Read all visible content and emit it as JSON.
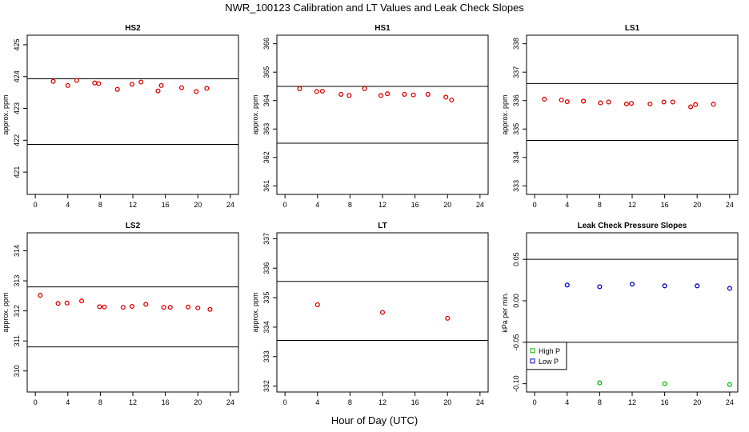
{
  "title": "NWR_100123  Calibration and LT Values and Leak Check Slopes",
  "xlabel": "Hour of Day (UTC)",
  "chart_data": [
    {
      "type": "scatter",
      "title": "HS2",
      "ylabel": "approx. ppm",
      "xlim": [
        -1,
        25
      ],
      "ylim": [
        420.3,
        425.3
      ],
      "xticks": [
        0,
        4,
        8,
        12,
        16,
        20,
        24
      ],
      "yticks": [
        421,
        422,
        423,
        424,
        425
      ],
      "hlines": [
        421.87,
        423.93
      ],
      "color": "#dd0000",
      "series": [
        {
          "x": [
            2.2,
            4,
            5.1,
            7.3,
            7.8,
            10.1,
            11.9,
            13,
            15.1,
            15.5,
            18,
            19.8,
            21.1
          ],
          "y": [
            423.85,
            423.72,
            423.88,
            423.8,
            423.78,
            423.6,
            423.76,
            423.83,
            423.55,
            423.72,
            423.65,
            423.53,
            423.63
          ]
        }
      ]
    },
    {
      "type": "scatter",
      "title": "HS1",
      "ylabel": "approx. ppm",
      "xlim": [
        -1,
        25
      ],
      "ylim": [
        360.7,
        366.3
      ],
      "xticks": [
        0,
        4,
        8,
        12,
        16,
        20,
        24
      ],
      "yticks": [
        361,
        362,
        363,
        364,
        365,
        366
      ],
      "hlines": [
        362.5,
        364.5
      ],
      "color": "#dd0000",
      "series": [
        {
          "x": [
            1.8,
            3.9,
            4.6,
            6.9,
            7.9,
            9.8,
            11.8,
            12.6,
            14.7,
            15.8,
            17.6,
            19.8,
            20.5
          ],
          "y": [
            364.42,
            364.32,
            364.33,
            364.22,
            364.18,
            364.42,
            364.18,
            364.24,
            364.22,
            364.2,
            364.22,
            364.12,
            364.02
          ]
        }
      ]
    },
    {
      "type": "scatter",
      "title": "LS1",
      "ylabel": "approx. ppm",
      "xlim": [
        -1,
        25
      ],
      "ylim": [
        332.7,
        338.3
      ],
      "xticks": [
        0,
        4,
        8,
        12,
        16,
        20,
        24
      ],
      "yticks": [
        333,
        334,
        335,
        336,
        337,
        338
      ],
      "hlines": [
        334.6,
        336.6
      ],
      "color": "#dd0000",
      "series": [
        {
          "x": [
            1.2,
            3.3,
            4,
            6,
            8.1,
            9.1,
            11.3,
            11.9,
            14.2,
            15.9,
            17,
            19.2,
            19.8,
            22
          ],
          "y": [
            336.05,
            336.02,
            335.96,
            335.98,
            335.92,
            335.95,
            335.88,
            335.9,
            335.88,
            335.95,
            335.95,
            335.78,
            335.86,
            335.87
          ]
        }
      ]
    },
    {
      "type": "scatter",
      "title": "LS2",
      "ylabel": "approx. ppm",
      "xlim": [
        -1,
        25
      ],
      "ylim": [
        309.3,
        314.6
      ],
      "xticks": [
        0,
        4,
        8,
        12,
        16,
        20,
        24
      ],
      "yticks": [
        310,
        311,
        312,
        313,
        314
      ],
      "hlines": [
        310.8,
        312.8
      ],
      "color": "#dd0000",
      "series": [
        {
          "x": [
            0.6,
            2.8,
            3.9,
            5.7,
            7.9,
            8.5,
            10.8,
            11.9,
            13.6,
            15.8,
            16.6,
            18.8,
            20,
            21.5
          ],
          "y": [
            312.52,
            312.25,
            312.26,
            312.33,
            312.14,
            312.13,
            312.12,
            312.15,
            312.22,
            312.12,
            312.12,
            312.13,
            312.1,
            312.05
          ]
        }
      ]
    },
    {
      "type": "scatter",
      "title": "LT",
      "ylabel": "approx. ppm",
      "xlim": [
        -1,
        25
      ],
      "ylim": [
        331.8,
        337.2
      ],
      "xticks": [
        0,
        4,
        8,
        12,
        16,
        20,
        24
      ],
      "yticks": [
        332,
        333,
        334,
        335,
        336,
        337
      ],
      "hlines": [
        333.55,
        335.55
      ],
      "color": "#dd0000",
      "series": [
        {
          "x": [
            4,
            12,
            20
          ],
          "y": [
            334.76,
            334.5,
            334.3
          ]
        }
      ]
    },
    {
      "type": "scatter",
      "title": "Leak Check Pressure Slopes",
      "ylabel": "kPa per min.",
      "xlim": [
        -1,
        25
      ],
      "ylim": [
        -0.11,
        0.082
      ],
      "xticks": [
        0,
        4,
        8,
        12,
        16,
        20,
        24
      ],
      "yticks": [
        -0.1,
        -0.05,
        0.0,
        0.05
      ],
      "ytick_labels": [
        "-0.10",
        "-0.05",
        "0.00",
        "0.05"
      ],
      "hlines": [
        -0.05,
        0.05
      ],
      "legend": "bottom-left",
      "series": [
        {
          "name": "High P",
          "color": "#00bb00",
          "x": [
            8,
            16,
            24
          ],
          "y": [
            -0.099,
            -0.1,
            -0.101
          ]
        },
        {
          "name": "Low P",
          "color": "#0000cc",
          "x": [
            4,
            8,
            12,
            16,
            20,
            24
          ],
          "y": [
            0.019,
            0.017,
            0.02,
            0.018,
            0.018,
            0.015
          ]
        }
      ]
    }
  ]
}
